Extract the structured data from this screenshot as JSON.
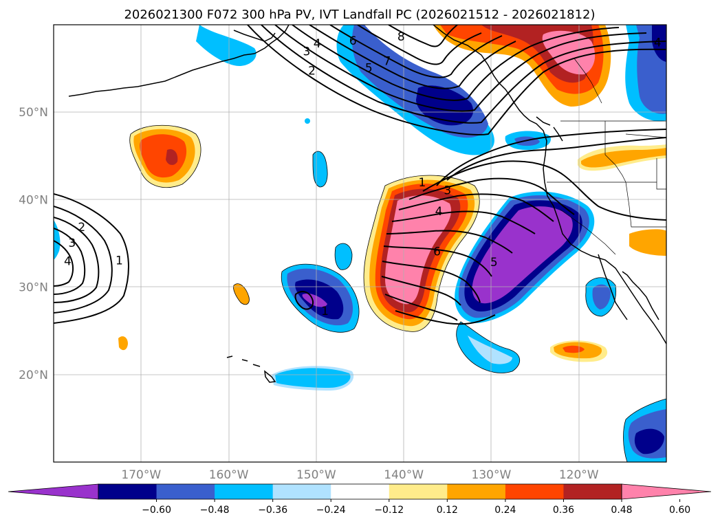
{
  "title": "2026021300 F072 300 hPa PV, IVT Landfall PC (2026021512 - 2026021812)",
  "map": {
    "extent": {
      "lon": [
        -180,
        -110
      ],
      "lat": [
        10,
        60
      ]
    },
    "lon_ticks": [
      {
        "value": -170,
        "label": "170°W"
      },
      {
        "value": -160,
        "label": "160°W"
      },
      {
        "value": -150,
        "label": "150°W"
      },
      {
        "value": -140,
        "label": "140°W"
      },
      {
        "value": -130,
        "label": "130°W"
      },
      {
        "value": -120,
        "label": "120°W"
      }
    ],
    "lat_ticks": [
      {
        "value": 20,
        "label": "20°N"
      },
      {
        "value": 30,
        "label": "30°N"
      },
      {
        "value": 40,
        "label": "40°N"
      },
      {
        "value": 50,
        "label": "50°N"
      }
    ],
    "gridlines": true
  },
  "colorbar": {
    "ticks": [
      "−0.60",
      "−0.48",
      "−0.36",
      "−0.24",
      "−0.12",
      "0.12",
      "0.24",
      "0.36",
      "0.48",
      "0.60"
    ],
    "colors": [
      "#9932CC",
      "#00008B",
      "#3A5FCD",
      "#00BFFF",
      "#B0E2FF",
      "#FFFFFF",
      "#FFEC8B",
      "#FFA500",
      "#FF4500",
      "#B22222",
      "#FF82AB"
    ],
    "extend": "both"
  },
  "contour_labels": [
    {
      "text": "2",
      "lon": -150.5,
      "lat": 54.7
    },
    {
      "text": "3",
      "lon": -151.1,
      "lat": 56.9
    },
    {
      "text": "4",
      "lon": -149.9,
      "lat": 57.8
    },
    {
      "text": "5",
      "lon": -144.0,
      "lat": 55.0
    },
    {
      "text": "6",
      "lon": -145.8,
      "lat": 58.1
    },
    {
      "text": "7",
      "lon": -141.9,
      "lat": 55.8
    },
    {
      "text": "8",
      "lon": -140.3,
      "lat": 58.6
    },
    {
      "text": "1",
      "lon": -137.9,
      "lat": 41.9
    },
    {
      "text": "3",
      "lon": -135.0,
      "lat": 41.0
    },
    {
      "text": "4",
      "lon": -136.0,
      "lat": 38.6
    },
    {
      "text": "6",
      "lon": -136.2,
      "lat": 34.0
    },
    {
      "text": "5",
      "lon": -129.7,
      "lat": 32.8
    },
    {
      "text": "2",
      "lon": -176.8,
      "lat": 36.8
    },
    {
      "text": "3",
      "lon": -177.9,
      "lat": 35.0
    },
    {
      "text": "4",
      "lon": -178.4,
      "lat": 32.9
    },
    {
      "text": "1",
      "lon": -172.5,
      "lat": 33.0
    },
    {
      "text": "1",
      "lon": -149.0,
      "lat": 27.2
    },
    {
      "text": "4",
      "lon": -111.0,
      "lat": 57.9
    }
  ]
}
